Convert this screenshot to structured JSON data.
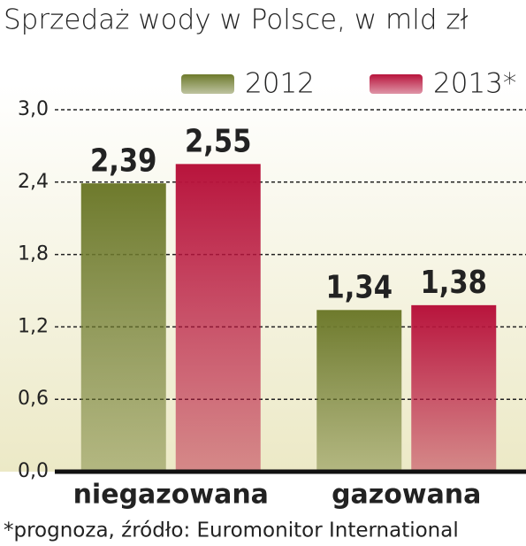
{
  "chart_data": {
    "type": "bar",
    "title": "Sprzedaż wody w Polsce, w mld zł",
    "categories": [
      "niegazowana",
      "gazowana"
    ],
    "series": [
      {
        "name": "2012",
        "color": "#6e7a2c",
        "values": [
          2.39,
          1.34
        ],
        "value_labels": [
          "2,39",
          "1,34"
        ]
      },
      {
        "name": "2013*",
        "color": "#b8143c",
        "values": [
          2.55,
          1.38
        ],
        "value_labels": [
          "2,55",
          "1,38"
        ]
      }
    ],
    "ylim": [
      0,
      3
    ],
    "yticks": [
      {
        "value": 0,
        "label": "0,0"
      },
      {
        "value": 0.6,
        "label": "0,6"
      },
      {
        "value": 1.2,
        "label": "1,2"
      },
      {
        "value": 1.8,
        "label": "1,8"
      },
      {
        "value": 2.4,
        "label": "2,4"
      },
      {
        "value": 3,
        "label": "3,0"
      }
    ],
    "grid": true,
    "note": "*prognoza, źródło: Euromonitor International"
  }
}
